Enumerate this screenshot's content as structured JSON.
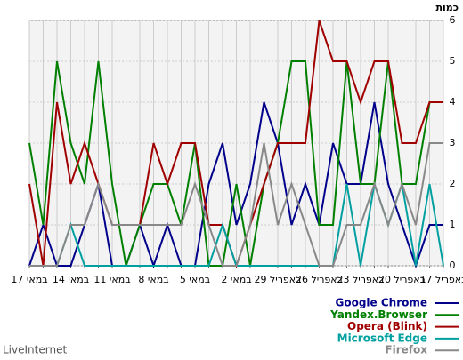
{
  "chart_data": {
    "type": "line",
    "y_axis_label": "כמות",
    "source": "LiveInternet",
    "categories": [
      "17 במאי",
      null,
      null,
      "14 במאי",
      null,
      null,
      "11 במאי",
      null,
      null,
      "8 במאי",
      null,
      null,
      "5 במאי",
      null,
      null,
      "2 במאי",
      null,
      null,
      "29 באפריל",
      null,
      null,
      "26 באפריל",
      null,
      null,
      "23 באפריל",
      null,
      null,
      "20 באפריל",
      null,
      null,
      "17 באפריל"
    ],
    "ylim": [
      0,
      6
    ],
    "yticks": [
      0,
      1,
      2,
      3,
      4,
      5,
      6
    ],
    "grid": true,
    "series": [
      {
        "name": "Google Chrome",
        "color": "#00008b",
        "values": [
          0,
          1,
          0,
          0,
          1,
          2,
          0,
          0,
          1,
          0,
          1,
          0,
          0,
          2,
          3,
          1,
          2,
          4,
          3,
          1,
          2,
          1,
          3,
          2,
          2,
          4,
          2,
          1,
          0,
          1,
          1
        ]
      },
      {
        "name": "Yandex.Browser",
        "color": "#008000",
        "values": [
          3,
          1,
          5,
          3,
          2,
          5,
          2,
          0,
          1,
          2,
          2,
          1,
          3,
          0,
          0,
          2,
          0,
          2,
          3,
          5,
          5,
          1,
          1,
          5,
          2,
          2,
          5,
          2,
          2,
          4,
          4
        ]
      },
      {
        "name": "Opera (Blink)",
        "color": "#a00000",
        "values": [
          2,
          0,
          4,
          2,
          3,
          2,
          1,
          1,
          1,
          3,
          2,
          3,
          3,
          1,
          1,
          0,
          1,
          2,
          3,
          3,
          3,
          6,
          5,
          5,
          4,
          5,
          5,
          3,
          3,
          4,
          4
        ]
      },
      {
        "name": "Microsoft Edge",
        "color": "#00a0a0",
        "values": [
          0,
          0,
          0,
          1,
          0,
          0,
          0,
          0,
          0,
          0,
          0,
          0,
          0,
          0,
          1,
          0,
          0,
          0,
          0,
          0,
          0,
          0,
          0,
          2,
          0,
          2,
          1,
          2,
          0,
          2,
          0
        ]
      },
      {
        "name": "Firefox",
        "color": "#888888",
        "values": [
          0,
          0,
          0,
          1,
          1,
          2,
          1,
          1,
          1,
          1,
          1,
          1,
          2,
          1,
          0,
          0,
          1,
          3,
          1,
          2,
          1,
          0,
          0,
          1,
          1,
          2,
          1,
          2,
          1,
          3,
          3
        ]
      }
    ]
  }
}
